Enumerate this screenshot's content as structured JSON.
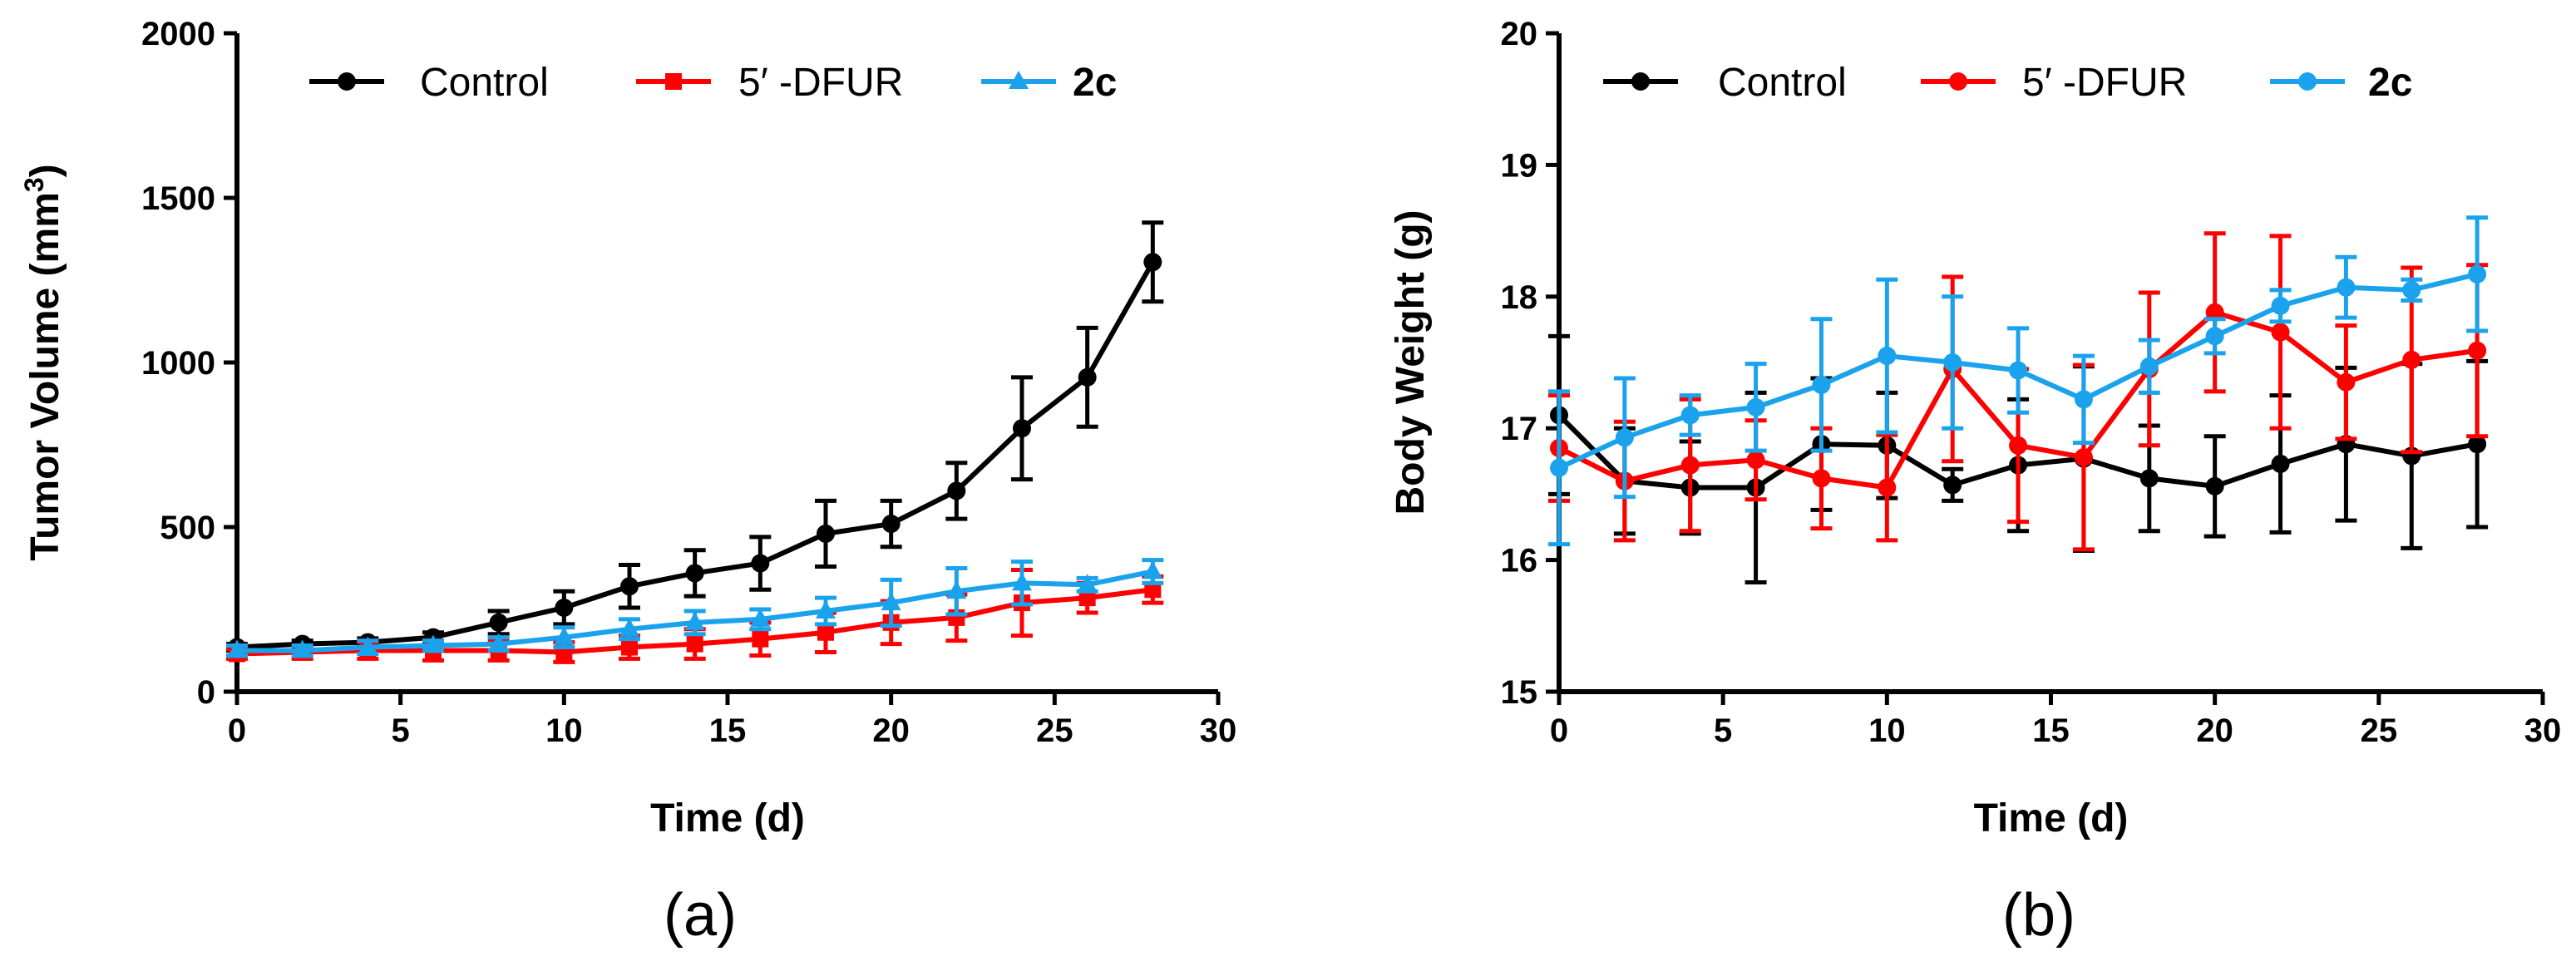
{
  "panel_labels": {
    "a": "(a)",
    "b": "(b)"
  },
  "chart_data": [
    {
      "type": "line",
      "panel": "(a)",
      "title": "",
      "xlabel": "Time (d)",
      "ylabel": "Tumor Volume (mm",
      "ylabel_sup": "3",
      "ylabel_end": ")",
      "xlim": [
        0,
        30
      ],
      "ylim": [
        0,
        2000
      ],
      "xticks": [
        0,
        5,
        10,
        15,
        20,
        25,
        30
      ],
      "yticks": [
        0,
        500,
        1000,
        1500,
        2000
      ],
      "xtick_labels": [
        "0",
        "5",
        "10",
        "15",
        "20",
        "25",
        "30"
      ],
      "ytick_labels": [
        "0",
        "500",
        "1000",
        "1500",
        "2000"
      ],
      "grid": false,
      "legend_position": "top",
      "x": [
        0,
        2,
        4,
        6,
        8,
        10,
        12,
        14,
        16,
        18,
        20,
        22,
        24,
        26,
        28
      ],
      "series": [
        {
          "name": "Control",
          "color": "#000000",
          "marker": "circle",
          "values": [
            135,
            145,
            150,
            165,
            210,
            255,
            320,
            360,
            390,
            480,
            510,
            610,
            800,
            955,
            1305
          ],
          "errors": [
            10,
            10,
            12,
            15,
            35,
            50,
            65,
            70,
            80,
            100,
            70,
            85,
            155,
            150,
            120
          ]
        },
        {
          "name": "5′ -DFUR",
          "color": "#ff0000",
          "marker": "square",
          "values": [
            115,
            120,
            125,
            125,
            125,
            120,
            135,
            145,
            160,
            180,
            210,
            225,
            270,
            285,
            310
          ],
          "errors": [
            15,
            20,
            25,
            30,
            30,
            30,
            35,
            45,
            50,
            60,
            65,
            70,
            100,
            45,
            40
          ]
        },
        {
          "name": "2c",
          "color": "#1aa3ec",
          "marker": "triangle",
          "values": [
            125,
            125,
            135,
            140,
            145,
            165,
            190,
            210,
            220,
            245,
            270,
            305,
            330,
            325,
            365
          ],
          "errors": [
            15,
            15,
            20,
            15,
            20,
            30,
            30,
            35,
            30,
            40,
            70,
            70,
            65,
            20,
            35
          ]
        }
      ]
    },
    {
      "type": "line",
      "panel": "(b)",
      "title": "",
      "xlabel": "Time (d)",
      "ylabel": "Body Weight (g)",
      "xlim": [
        0,
        30
      ],
      "ylim": [
        15,
        20
      ],
      "xticks": [
        0,
        5,
        10,
        15,
        20,
        25,
        30
      ],
      "yticks": [
        15,
        16,
        17,
        18,
        19,
        20
      ],
      "xtick_labels": [
        "0",
        "5",
        "10",
        "15",
        "20",
        "25",
        "30"
      ],
      "ytick_labels": [
        "15",
        "16",
        "17",
        "18",
        "19",
        "20"
      ],
      "grid": false,
      "legend_position": "top",
      "x": [
        0,
        2,
        4,
        6,
        8,
        10,
        12,
        14,
        16,
        18,
        20,
        22,
        24,
        26,
        28
      ],
      "series": [
        {
          "name": "Control",
          "color": "#000000",
          "marker": "circle",
          "values": [
            17.1,
            16.6,
            16.55,
            16.55,
            16.88,
            16.87,
            16.57,
            16.72,
            16.77,
            16.62,
            16.56,
            16.73,
            16.88,
            16.79,
            16.88
          ],
          "errors": [
            0.6,
            0.4,
            0.35,
            0.72,
            0.5,
            0.4,
            0.12,
            0.5,
            0.7,
            0.4,
            0.38,
            0.52,
            0.58,
            0.7,
            0.63
          ]
        },
        {
          "name": "5′ -DFUR",
          "color": "#ff0000",
          "marker": "circle",
          "values": [
            16.85,
            16.6,
            16.72,
            16.76,
            16.62,
            16.55,
            17.45,
            16.87,
            16.78,
            17.45,
            17.88,
            17.73,
            17.35,
            17.52,
            17.59
          ],
          "errors": [
            0.4,
            0.45,
            0.5,
            0.3,
            0.38,
            0.4,
            0.7,
            0.58,
            0.7,
            0.58,
            0.6,
            0.73,
            0.43,
            0.7,
            0.65
          ]
        },
        {
          "name": "2c",
          "color": "#1aa3ec",
          "marker": "circle",
          "values": [
            16.7,
            16.93,
            17.1,
            17.16,
            17.33,
            17.55,
            17.5,
            17.44,
            17.22,
            17.47,
            17.7,
            17.93,
            18.07,
            18.05,
            18.17
          ],
          "errors": [
            0.58,
            0.45,
            0.15,
            0.33,
            0.5,
            0.58,
            0.5,
            0.32,
            0.33,
            0.2,
            0.13,
            0.12,
            0.23,
            0.08,
            0.43
          ]
        }
      ]
    }
  ]
}
